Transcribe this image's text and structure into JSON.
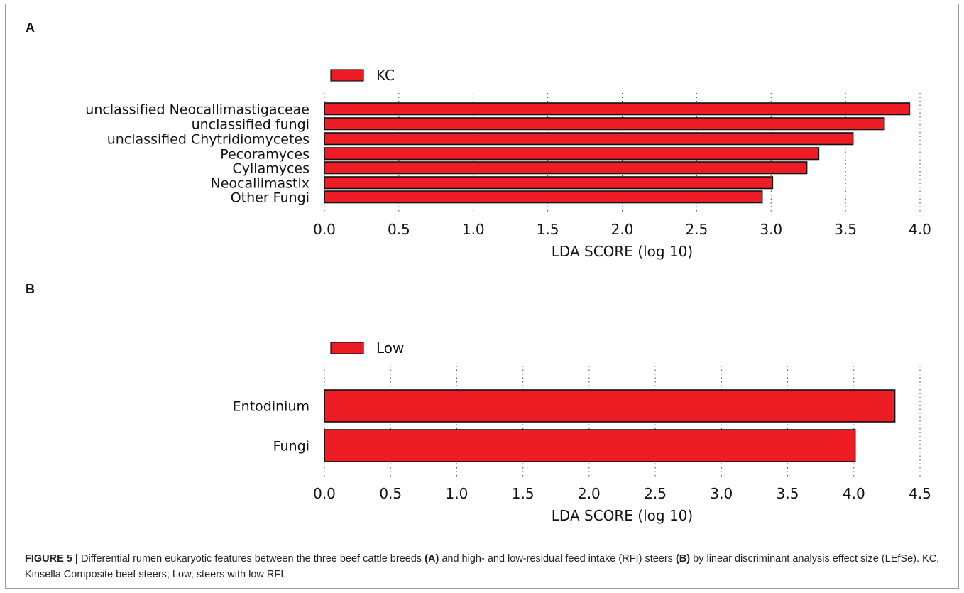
{
  "panels": {
    "a_label": "A",
    "b_label": "B"
  },
  "colors": {
    "bar_fill": "#ee1c25",
    "bar_stroke": "#111111",
    "grid": "#444444"
  },
  "chart_data": [
    {
      "type": "bar",
      "orientation": "horizontal",
      "legend": [
        "KC"
      ],
      "legend_placement": "top-left",
      "categories": [
        "unclassified Neocallimastigaceae",
        "unclassified fungi",
        "unclassified Chytridiomycetes",
        "Pecoramyces",
        "Cyllamyces",
        "Neocallimastix",
        "Other Fungi"
      ],
      "values": [
        3.93,
        3.76,
        3.55,
        3.32,
        3.24,
        3.01,
        2.94
      ],
      "xlabel": "LDA SCORE (log 10)",
      "xlim": [
        0,
        4.0
      ],
      "xticks": [
        "0.0",
        "0.5",
        "1.0",
        "1.5",
        "2.0",
        "2.5",
        "3.0",
        "3.5",
        "4.0"
      ],
      "grid": "vertical dashed"
    },
    {
      "type": "bar",
      "orientation": "horizontal",
      "legend": [
        "Low"
      ],
      "legend_placement": "top-left",
      "categories": [
        "Entodinium",
        "Fungi"
      ],
      "values": [
        4.31,
        4.01
      ],
      "xlabel": "LDA SCORE (log 10)",
      "xlim": [
        0,
        4.5
      ],
      "xticks": [
        "0.0",
        "0.5",
        "1.0",
        "1.5",
        "2.0",
        "2.5",
        "3.0",
        "3.5",
        "4.0",
        "4.5"
      ],
      "grid": "vertical dashed"
    }
  ],
  "caption": {
    "figure_label": "FIGURE 5 |",
    "text_1": " Differential rumen eukaryotic features between the three beef cattle breeds ",
    "ref_a": "(A)",
    "text_2": " and high- and low-residual feed intake (RFI) steers ",
    "ref_b": "(B)",
    "text_3": " by linear discriminant analysis effect size (LEfSe). KC, Kinsella Composite beef steers; Low, steers with low RFI."
  }
}
